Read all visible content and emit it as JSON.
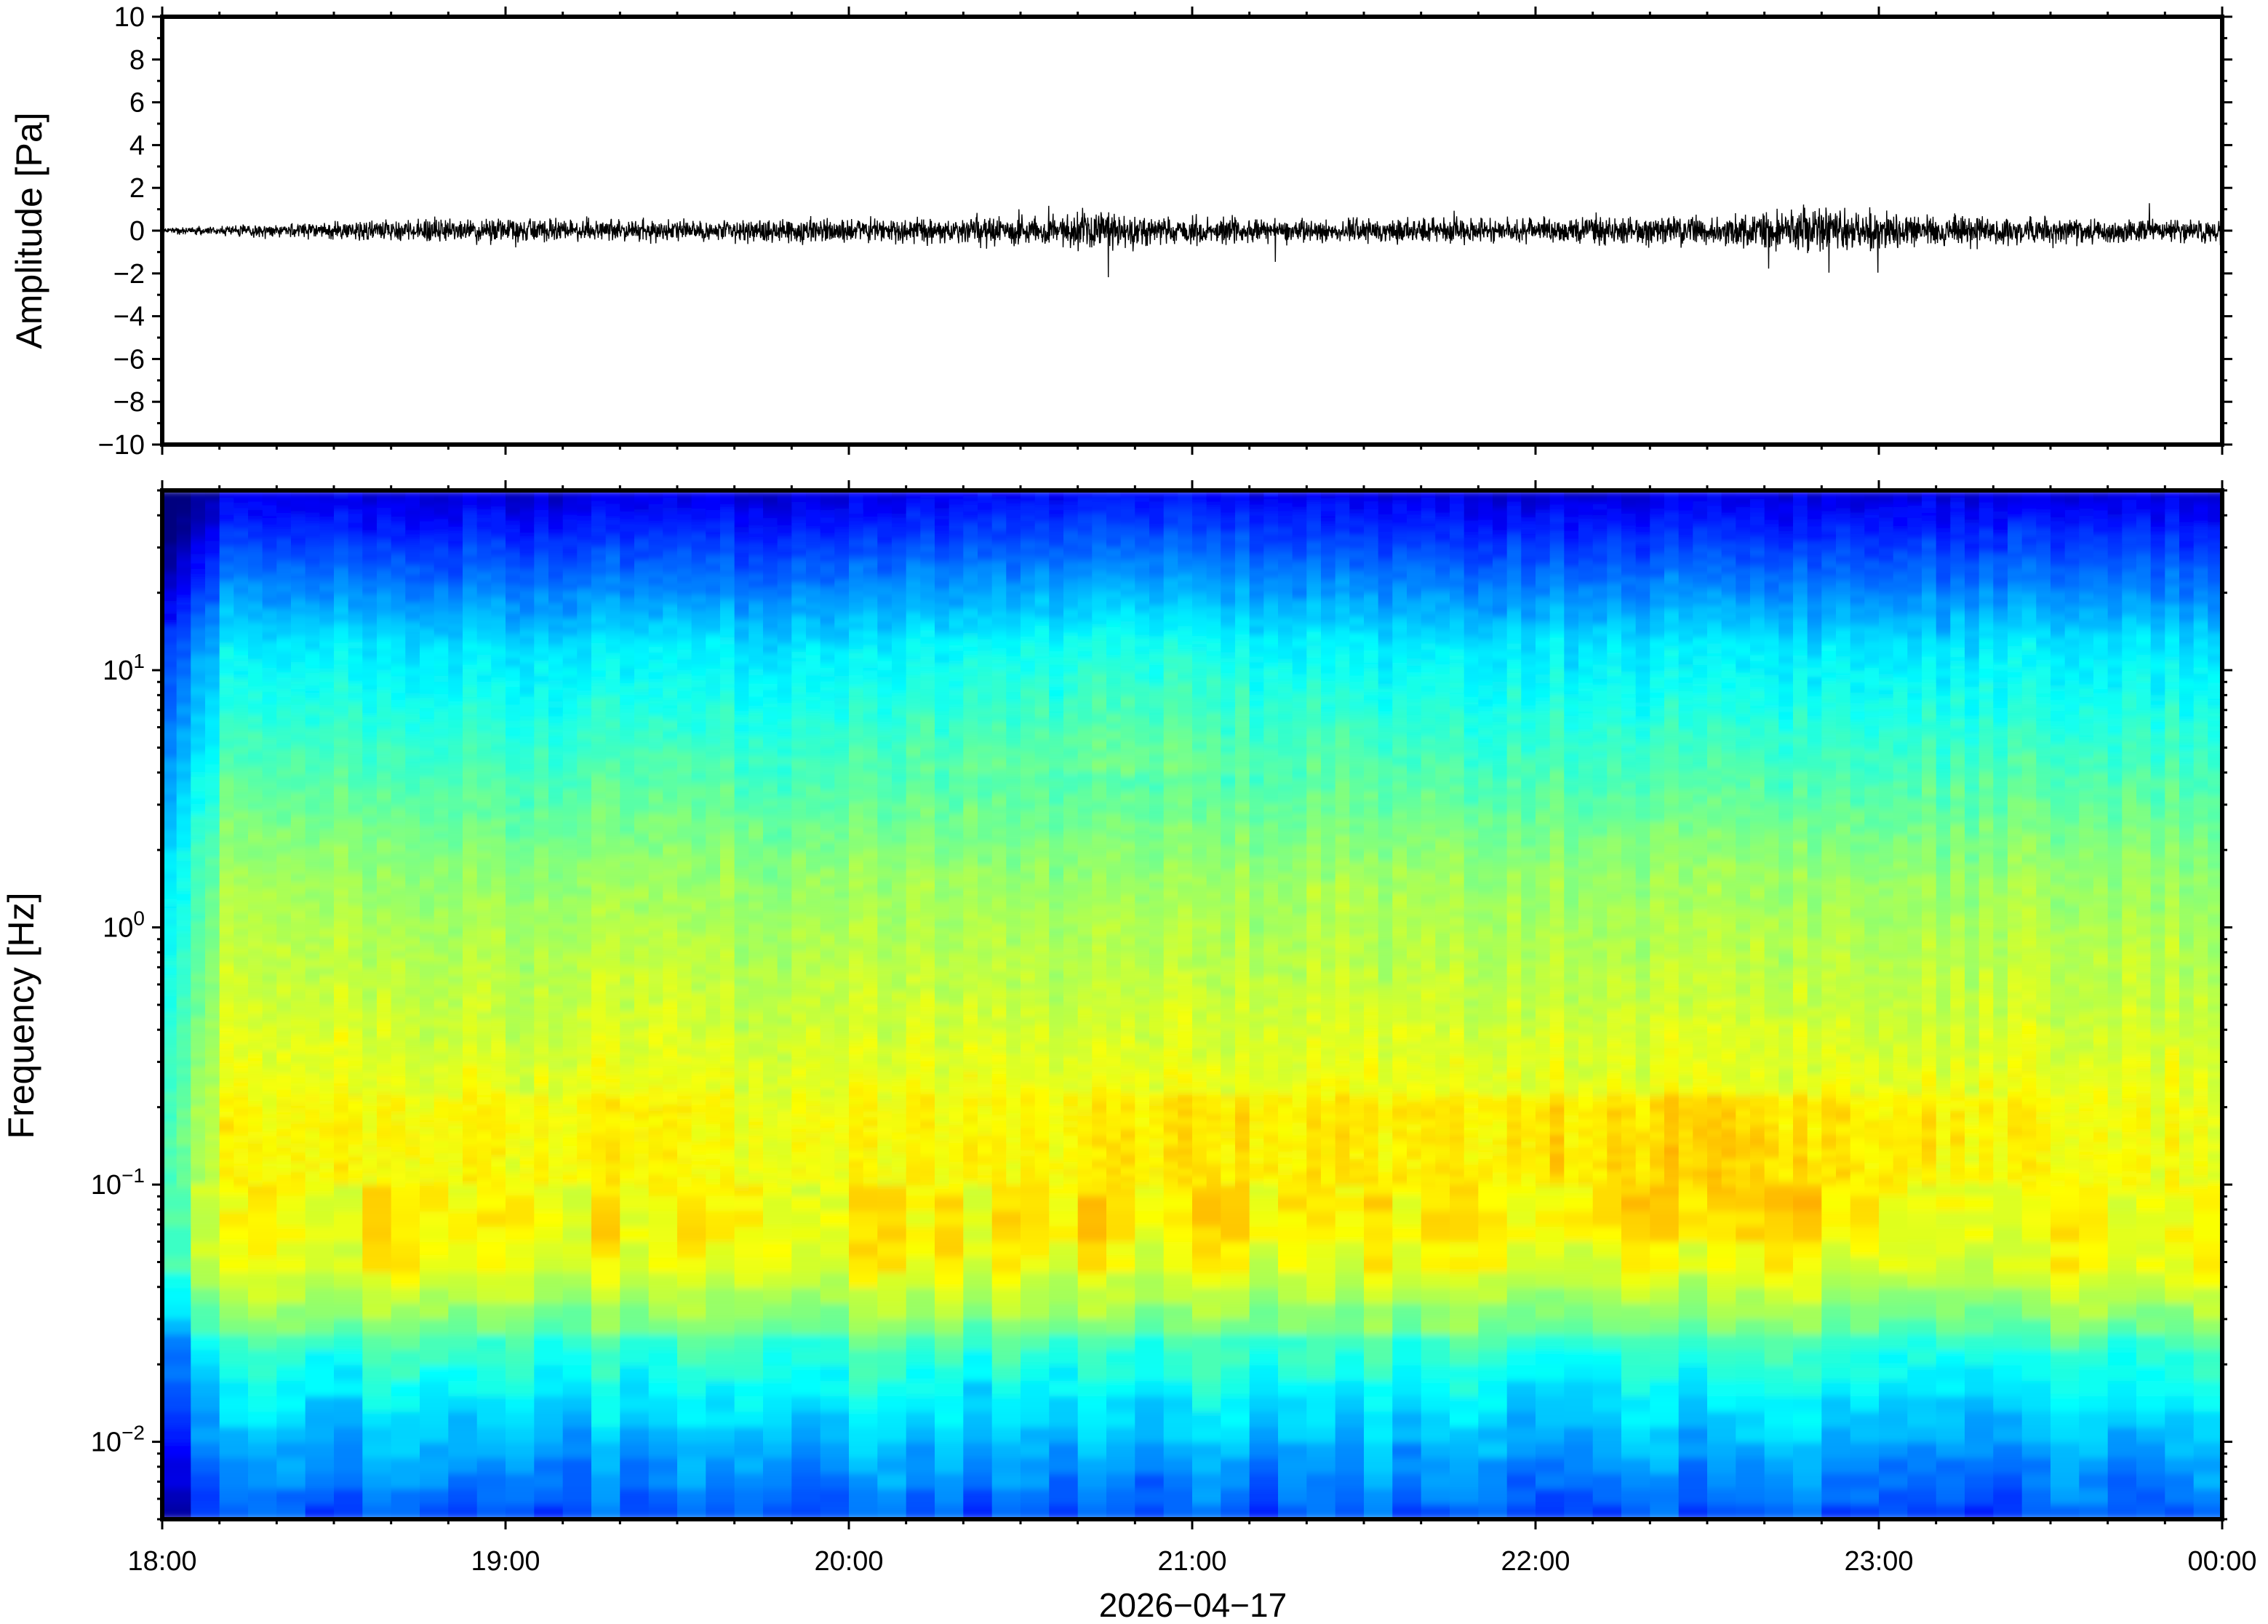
{
  "chart_data": [
    {
      "type": "line",
      "ylabel": "Amplitude [Pa]",
      "ylim": [
        -10,
        10
      ],
      "yticks": [
        10,
        8,
        6,
        4,
        2,
        0,
        -2,
        -4,
        -6,
        -8,
        -10
      ],
      "ytick_labels": [
        "10",
        "8",
        "6",
        "4",
        "2",
        "0",
        "−2",
        "−4",
        "−6",
        "−8",
        "−10"
      ],
      "xlim": [
        "18:00",
        "00:00"
      ],
      "line_color": "#000000",
      "series": [
        {
          "envelope_hours": [
            0,
            0.3,
            0.5,
            1.0,
            1.5,
            2.0,
            2.5,
            2.7,
            2.8,
            3.0,
            3.5,
            4.0,
            4.5,
            4.85,
            5.0,
            5.5,
            6.0
          ],
          "envelope_amplitude_pa": [
            0.1,
            0.25,
            0.35,
            0.5,
            0.4,
            0.45,
            0.55,
            0.75,
            0.6,
            0.5,
            0.45,
            0.5,
            0.55,
            0.9,
            0.7,
            0.5,
            0.45
          ]
        }
      ]
    },
    {
      "type": "heatmap",
      "ylabel": "Frequency [Hz]",
      "yscale": "log",
      "ylim": [
        0.005,
        50
      ],
      "ytick_labels": [
        "10^1",
        "10^0",
        "10^−1",
        "10^−2"
      ],
      "xticks": [
        "18:00",
        "19:00",
        "20:00",
        "21:00",
        "22:00",
        "23:00",
        "00:00"
      ],
      "xlabel": "2026−04−17",
      "colormap": "jet",
      "colormap_stops": [
        "#00007f",
        "#0000ff",
        "#007fff",
        "#00ffff",
        "#7fff7f",
        "#ffff00",
        "#ff7f00",
        "#ff0000"
      ],
      "grid": false
    }
  ]
}
